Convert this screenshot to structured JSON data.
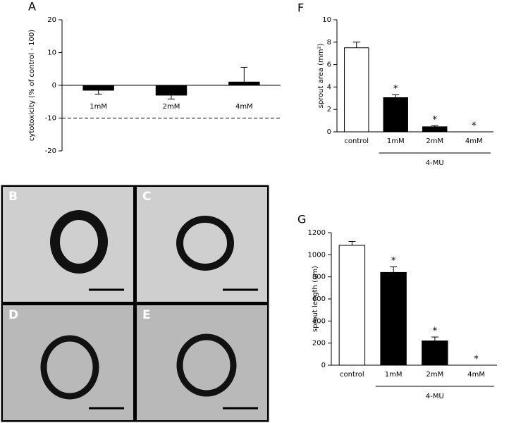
{
  "chart_data": [
    {
      "type": "bar",
      "panel_label": "A",
      "ylabel": "cytotoxicity (% of control - 100)",
      "categories": [
        "1mM",
        "2mM",
        "4mM"
      ],
      "values": [
        -1.5,
        -3,
        1
      ],
      "errors": [
        1.2,
        1.2,
        4.5
      ],
      "colors": [
        "#000000",
        "#000000",
        "#000000"
      ],
      "ylim": [
        -20,
        20
      ],
      "yticks": [
        -20,
        -10,
        0,
        10,
        20
      ],
      "hline": -10
    },
    {
      "type": "bar",
      "panel_label": "F",
      "ylabel": "sprout area (mm²)",
      "categories": [
        "control",
        "1mM",
        "2mM",
        "4mM"
      ],
      "values": [
        7.5,
        3.05,
        0.45,
        0
      ],
      "errors": [
        0.5,
        0.25,
        0.1,
        0
      ],
      "colors": [
        "#ffffff",
        "#000000",
        "#000000",
        "#000000"
      ],
      "significance": [
        null,
        "*",
        "*",
        "*"
      ],
      "group_label": "4-MU",
      "ylim": [
        0,
        10
      ],
      "yticks": [
        0,
        2,
        4,
        6,
        8,
        10
      ]
    },
    {
      "type": "bar",
      "panel_label": "G",
      "ylabel": "sprout length (um)",
      "categories": [
        "control",
        "1mM",
        "2mM",
        "4mM"
      ],
      "values": [
        1085,
        840,
        220,
        0
      ],
      "errors": [
        35,
        50,
        35,
        0
      ],
      "colors": [
        "#ffffff",
        "#000000",
        "#000000",
        "#000000"
      ],
      "significance": [
        null,
        "*",
        "*",
        "*"
      ],
      "group_label": "4-MU",
      "ylim": [
        0,
        1200
      ],
      "yticks": [
        0,
        200,
        400,
        600,
        800,
        1000,
        1200
      ]
    }
  ],
  "micrographs": [
    {
      "panel_label": "B"
    },
    {
      "panel_label": "C"
    },
    {
      "panel_label": "D"
    },
    {
      "panel_label": "E"
    }
  ]
}
